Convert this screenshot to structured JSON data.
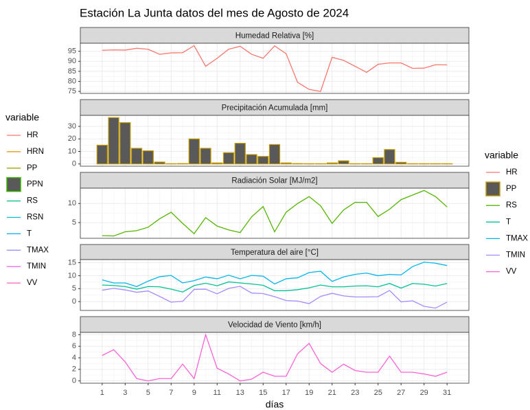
{
  "title": "Estación La Junta datos del mes de Agosto de 2024",
  "x_axis": {
    "label": "días",
    "xlim": [
      -0.9,
      32.9
    ],
    "xticks": [
      1,
      3,
      5,
      7,
      9,
      11,
      13,
      15,
      17,
      19,
      21,
      23,
      25,
      27,
      29,
      31
    ],
    "x": [
      1,
      2,
      3,
      4,
      5,
      6,
      7,
      8,
      9,
      10,
      11,
      12,
      13,
      14,
      15,
      16,
      17,
      18,
      19,
      20,
      21,
      22,
      23,
      24,
      25,
      26,
      27,
      28,
      29,
      30,
      31
    ]
  },
  "chart_data": [
    {
      "type": "line",
      "title": "Humedad Relativa [%]",
      "ylim": [
        74,
        99
      ],
      "yticks": [
        75,
        80,
        85,
        90,
        95
      ],
      "series": [
        {
          "name": "HR",
          "color": "#F8766D",
          "values": [
            95.5,
            95.7,
            95.6,
            96.5,
            96,
            93.5,
            94.2,
            94.3,
            97.8,
            87.5,
            91.5,
            96,
            97.5,
            93.5,
            91.5,
            97.7,
            93.8,
            79.5,
            76,
            75,
            92,
            90.5,
            87.5,
            84.5,
            88.5,
            89.2,
            89.2,
            86.5,
            86.6,
            88.3,
            88.2
          ]
        }
      ]
    },
    {
      "type": "bar",
      "title": "Precipitación Acumulada [mm]",
      "ylim": [
        -1.8,
        38.8
      ],
      "yticks": [
        0,
        10,
        20,
        30
      ],
      "series": [
        {
          "name": "PP",
          "color": "#C49A00",
          "fill": "#595959",
          "values": [
            15,
            37,
            33,
            12.5,
            10.5,
            1.5,
            0.2,
            0.3,
            20,
            12.5,
            0.8,
            9,
            16.5,
            7.5,
            6,
            15.5,
            0.8,
            0.3,
            0.2,
            0.2,
            0.8,
            2.5,
            0.2,
            0.2,
            5,
            11.5,
            1.3,
            0.2,
            0.2,
            0.2,
            0.2
          ]
        }
      ]
    },
    {
      "type": "line",
      "title": "Radiación Solar [MJ/m2]",
      "ylim": [
        0.9,
        14
      ],
      "yticks": [
        5,
        10
      ],
      "series": [
        {
          "name": "RS",
          "color": "#53B400",
          "values": [
            1.6,
            1.5,
            2.6,
            2.9,
            3.8,
            6,
            7.7,
            4.8,
            2.1,
            6.3,
            4.1,
            3.1,
            2.4,
            6.5,
            9.2,
            2.6,
            7.7,
            10,
            11.8,
            9.4,
            4.8,
            8.3,
            10.3,
            10.3,
            6.6,
            8.5,
            11,
            12.2,
            13.4,
            11.8,
            9.1
          ]
        }
      ]
    },
    {
      "type": "line",
      "title": "Temperatura del aire [°C]",
      "ylim": [
        -3.4,
        16.2
      ],
      "yticks": [
        0,
        5,
        10,
        15
      ],
      "series": [
        {
          "name": "T",
          "color": "#00C094",
          "values": [
            6.4,
            6.2,
            5.8,
            4.8,
            5.8,
            5.7,
            4.8,
            3.7,
            6.2,
            7.1,
            6.1,
            7.6,
            7.2,
            6.8,
            6.3,
            4.2,
            4.2,
            4.6,
            5.3,
            6.4,
            5.7,
            5.7,
            6,
            6.1,
            5.7,
            7,
            5.2,
            7,
            6.7,
            6,
            7
          ]
        },
        {
          "name": "TMAX",
          "color": "#00B6EB",
          "values": [
            8.4,
            7.2,
            7.2,
            5.8,
            7.9,
            9.6,
            10.1,
            7.2,
            8.1,
            9.5,
            8.8,
            10.2,
            8.8,
            10.1,
            9.8,
            6.8,
            8.8,
            9.2,
            11.2,
            11.7,
            7.8,
            9.5,
            10.5,
            11,
            10,
            10.5,
            10.3,
            13.5,
            15.2,
            14.8,
            13.9
          ]
        },
        {
          "name": "TMIN",
          "color": "#A58AFF",
          "values": [
            4.4,
            5.1,
            4.5,
            3.6,
            4.1,
            2,
            -0.2,
            0.1,
            4.7,
            4.8,
            3,
            5.1,
            5.9,
            3.3,
            3.1,
            1.9,
            0.4,
            0.2,
            -0.8,
            2,
            3.2,
            2.2,
            1.8,
            1.8,
            1.9,
            4.3,
            -0.1,
            0.3,
            -1.8,
            -2.5,
            -0.2
          ]
        }
      ]
    },
    {
      "type": "line",
      "title": "Velocidad de Viento [km/h]",
      "ylim": [
        -0.4,
        8.4
      ],
      "yticks": [
        0,
        2,
        4,
        6,
        8
      ],
      "series": [
        {
          "name": "VV",
          "color": "#FB61D7",
          "values": [
            4.4,
            5.4,
            3.3,
            0.4,
            0,
            0.4,
            0.4,
            2.9,
            0.4,
            8,
            2.2,
            1.2,
            0,
            0.3,
            1.5,
            0.8,
            0.8,
            4.7,
            6.5,
            3,
            1.5,
            2.9,
            1.8,
            1.5,
            1.5,
            4.3,
            1.5,
            1.5,
            1.2,
            0.8,
            1.5
          ]
        }
      ]
    }
  ],
  "legends": [
    {
      "title": "variable",
      "entries": [
        {
          "name": "HR",
          "color": "#F8766D"
        },
        {
          "name": "HRN",
          "color": "#D89000"
        },
        {
          "name": "PP",
          "color": "#A3A500"
        },
        {
          "name": "PPN",
          "color": "#39B600",
          "box": true
        },
        {
          "name": "RS",
          "color": "#00BF7D"
        },
        {
          "name": "RSN",
          "color": "#00BFC4"
        },
        {
          "name": "T",
          "color": "#00B0F6"
        },
        {
          "name": "TMAX",
          "color": "#9590FF"
        },
        {
          "name": "TMIN",
          "color": "#E76BF3"
        },
        {
          "name": "VV",
          "color": "#FF62BC"
        }
      ]
    },
    {
      "title": "variable",
      "entries": [
        {
          "name": "HR",
          "color": "#F8766D"
        },
        {
          "name": "PP",
          "color": "#C49A00",
          "box": true
        },
        {
          "name": "RS",
          "color": "#53B400"
        },
        {
          "name": "T",
          "color": "#00C094"
        },
        {
          "name": "TMAX",
          "color": "#00B6EB"
        },
        {
          "name": "TMIN",
          "color": "#A58AFF"
        },
        {
          "name": "VV",
          "color": "#FB61D7"
        }
      ]
    }
  ]
}
